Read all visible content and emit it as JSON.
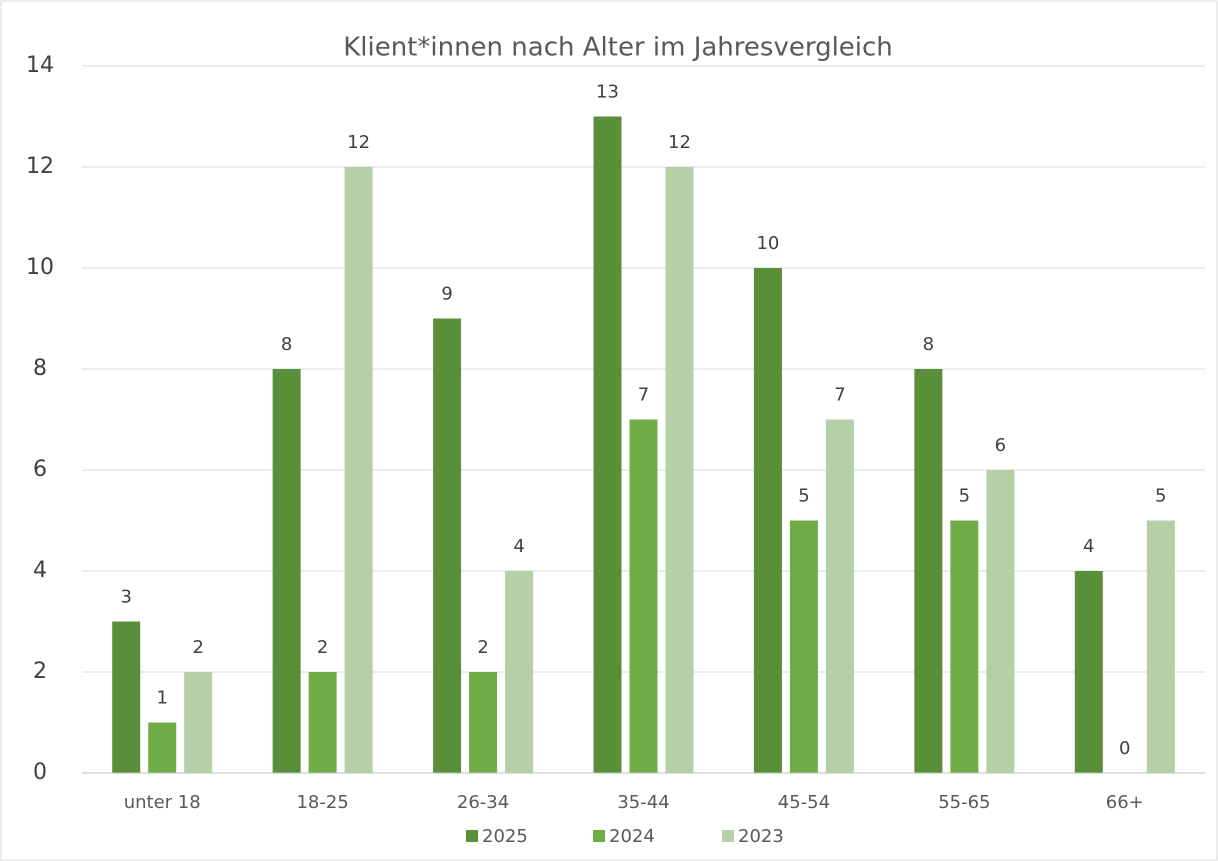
{
  "chart_data": {
    "type": "bar",
    "title": "Klient*innen nach Alter im Jahresvergleich",
    "categories": [
      "unter 18",
      "18-25",
      "26-34",
      "35-44",
      "45-54",
      "55-65",
      "66+"
    ],
    "series": [
      {
        "name": "2025",
        "color": "#5a8f3a",
        "values": [
          3,
          8,
          9,
          13,
          10,
          8,
          4
        ]
      },
      {
        "name": "2024",
        "color": "#70ad47",
        "values": [
          1,
          2,
          2,
          7,
          5,
          5,
          0
        ]
      },
      {
        "name": "2023",
        "color": "#b5cfa6",
        "values": [
          2,
          12,
          4,
          12,
          7,
          6,
          5
        ]
      }
    ],
    "ylim": [
      0,
      14
    ],
    "yticks": [
      0,
      2,
      4,
      6,
      8,
      10,
      12,
      14
    ],
    "grid": true,
    "legend": "bottom"
  }
}
